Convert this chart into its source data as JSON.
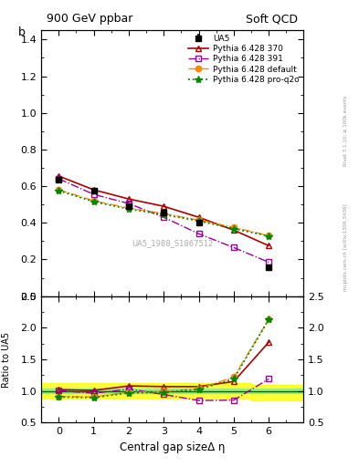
{
  "title_left": "900 GeV ppbar",
  "title_right": "Soft QCD",
  "ylabel_main": "b",
  "ylabel_ratio": "Ratio to UA5",
  "xlabel": "Central gap sizeΔ η",
  "right_label": "mcplots.cern.ch [arXiv:1306.3436]",
  "right_label2": "Rivet 3.1.10; ≥ 100k events",
  "watermark": "UA5_1988_S1867512",
  "x": [
    0,
    1,
    2,
    3,
    4,
    5,
    6
  ],
  "ua5_y": [
    0.635,
    0.575,
    0.49,
    0.455,
    0.4,
    null,
    0.155
  ],
  "ua5_yerr": [
    0.015,
    0.015,
    0.012,
    0.012,
    0.015,
    null,
    0.015
  ],
  "p370_y": [
    0.655,
    0.58,
    0.53,
    0.49,
    0.43,
    0.36,
    0.275
  ],
  "p391_y": [
    0.64,
    0.555,
    0.505,
    0.43,
    0.34,
    0.265,
    0.185
  ],
  "pdef_y": [
    0.58,
    0.52,
    0.48,
    0.45,
    0.415,
    0.375,
    0.33
  ],
  "pq2o_y": [
    0.575,
    0.515,
    0.475,
    0.445,
    0.41,
    0.368,
    0.328
  ],
  "ratio_p370": [
    1.02,
    1.01,
    1.08,
    1.07,
    1.07,
    1.15,
    1.77
  ],
  "ratio_p391": [
    1.005,
    0.965,
    1.03,
    0.945,
    0.85,
    0.855,
    1.19
  ],
  "ratio_pdef": [
    0.915,
    0.906,
    0.98,
    0.99,
    1.037,
    1.22,
    2.13
  ],
  "ratio_pq2o": [
    0.905,
    0.897,
    0.97,
    0.978,
    1.025,
    1.19,
    2.13
  ],
  "color_ua5": "#000000",
  "color_p370": "#aa0000",
  "color_p391": "#990099",
  "color_pdef": "#ff8800",
  "color_pq2o": "#008800",
  "ylim_main": [
    0.0,
    1.45
  ],
  "ylim_ratio": [
    0.5,
    2.5
  ],
  "xlim": [
    -0.5,
    6.99
  ],
  "yticks_main": [
    0.0,
    0.2,
    0.4,
    0.6,
    0.8,
    1.0,
    1.2,
    1.4
  ],
  "yticks_ratio": [
    0.5,
    1.0,
    1.5,
    2.0,
    2.5
  ]
}
